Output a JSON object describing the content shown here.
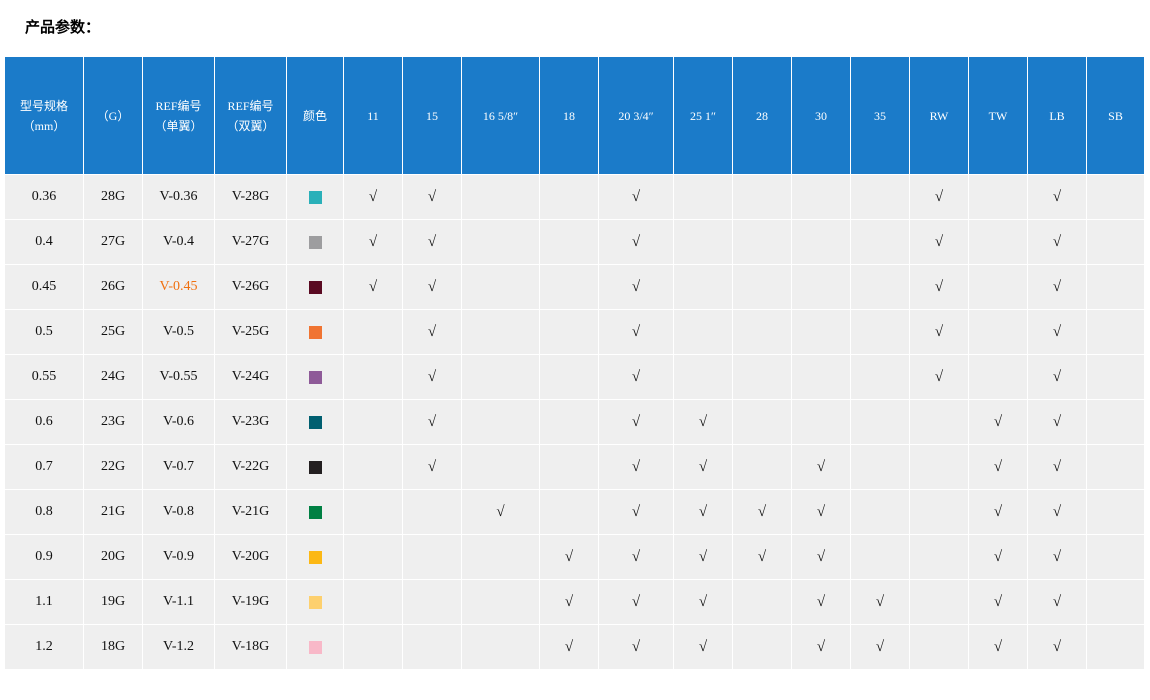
{
  "title": "产品参数：",
  "table": {
    "headers": [
      [
        "型号规格",
        "（mm）"
      ],
      [
        "（G）"
      ],
      [
        "REF编号",
        "（单翼）"
      ],
      [
        "REF编号",
        "（双翼）"
      ],
      [
        "颜色"
      ],
      [
        "11"
      ],
      [
        "15"
      ],
      [
        "16 5/8″"
      ],
      [
        "18"
      ],
      [
        "20 3/4″"
      ],
      [
        "25 1″"
      ],
      [
        "28"
      ],
      [
        "30"
      ],
      [
        "35"
      ],
      [
        "RW"
      ],
      [
        "TW"
      ],
      [
        "LB"
      ],
      [
        "SB"
      ]
    ],
    "rows": [
      {
        "cells": [
          "0.36",
          "28G",
          "V-0.36",
          "V-28G",
          "√",
          "√",
          null,
          null,
          "√",
          null,
          null,
          null,
          null,
          "√",
          null,
          "√",
          null
        ],
        "color": "#2ab0b9"
      },
      {
        "cells": [
          "0.4",
          "27G",
          "V-0.4",
          "V-27G",
          "√",
          "√",
          null,
          null,
          "√",
          null,
          null,
          null,
          null,
          "√",
          null,
          "√",
          null
        ],
        "color": "#9d9d9f"
      },
      {
        "cells": [
          "0.45",
          "26G",
          "V-0.45",
          "V-26G",
          "√",
          "√",
          null,
          null,
          "√",
          null,
          null,
          null,
          null,
          "√",
          null,
          "√",
          null
        ],
        "color": "#5a0a22",
        "highlight": {
          "cell": 2,
          "color": "#f07010"
        }
      },
      {
        "cells": [
          "0.5",
          "25G",
          "V-0.5",
          "V-25G",
          null,
          "√",
          null,
          null,
          "√",
          null,
          null,
          null,
          null,
          "√",
          null,
          "√",
          null
        ],
        "color": "#f07432"
      },
      {
        "cells": [
          "0.55",
          "24G",
          "V-0.55",
          "V-24G",
          null,
          "√",
          null,
          null,
          "√",
          null,
          null,
          null,
          null,
          "√",
          null,
          "√",
          null
        ],
        "color": "#8e5a98"
      },
      {
        "cells": [
          "0.6",
          "23G",
          "V-0.6",
          "V-23G",
          null,
          "√",
          null,
          null,
          "√",
          "√",
          null,
          null,
          null,
          null,
          "√",
          "√",
          null
        ],
        "color": "#005f70"
      },
      {
        "cells": [
          "0.7",
          "22G",
          "V-0.7",
          "V-22G",
          null,
          "√",
          null,
          null,
          "√",
          "√",
          null,
          "√",
          null,
          null,
          "√",
          "√",
          null
        ],
        "color": "#231f20"
      },
      {
        "cells": [
          "0.8",
          "21G",
          "V-0.8",
          "V-21G",
          null,
          null,
          "√",
          null,
          "√",
          "√",
          "√",
          "√",
          null,
          null,
          "√",
          "√",
          null
        ],
        "color": "#008043"
      },
      {
        "cells": [
          "0.9",
          "20G",
          "V-0.9",
          "V-20G",
          null,
          null,
          null,
          "√",
          "√",
          "√",
          "√",
          "√",
          null,
          null,
          "√",
          "√",
          null
        ],
        "color": "#fcb814"
      },
      {
        "cells": [
          "1.1",
          "19G",
          "V-1.1",
          "V-19G",
          null,
          null,
          null,
          "√",
          "√",
          "√",
          null,
          "√",
          "√",
          null,
          "√",
          "√",
          null
        ],
        "color": "#fdd06e"
      },
      {
        "cells": [
          "1.2",
          "18G",
          "V-1.2",
          "V-18G",
          null,
          null,
          null,
          "√",
          "√",
          "√",
          null,
          "√",
          "√",
          null,
          "√",
          "√",
          null
        ],
        "color": "#f8b8c8"
      }
    ]
  }
}
